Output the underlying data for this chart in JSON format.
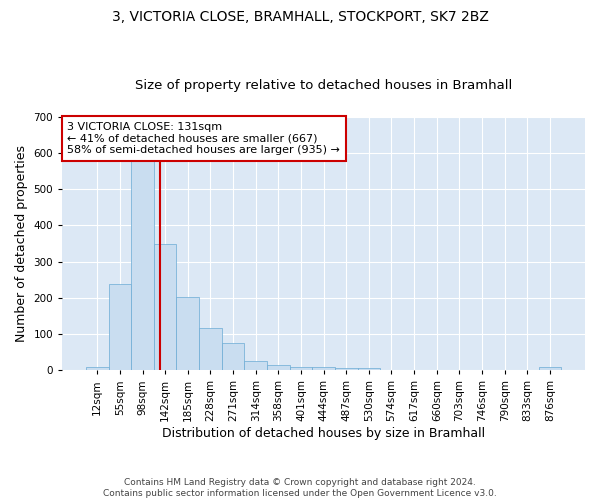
{
  "title_line1": "3, VICTORIA CLOSE, BRAMHALL, STOCKPORT, SK7 2BZ",
  "title_line2": "Size of property relative to detached houses in Bramhall",
  "xlabel": "Distribution of detached houses by size in Bramhall",
  "ylabel": "Number of detached properties",
  "footnote": "Contains HM Land Registry data © Crown copyright and database right 2024.\nContains public sector information licensed under the Open Government Licence v3.0.",
  "bar_labels": [
    "12sqm",
    "55sqm",
    "98sqm",
    "142sqm",
    "185sqm",
    "228sqm",
    "271sqm",
    "314sqm",
    "358sqm",
    "401sqm",
    "444sqm",
    "487sqm",
    "530sqm",
    "574sqm",
    "617sqm",
    "660sqm",
    "703sqm",
    "746sqm",
    "790sqm",
    "833sqm",
    "876sqm"
  ],
  "bar_values": [
    8,
    237,
    590,
    350,
    203,
    117,
    74,
    25,
    15,
    10,
    10,
    6,
    5,
    0,
    0,
    0,
    0,
    0,
    0,
    0,
    8
  ],
  "bar_color": "#c9ddf0",
  "bar_edge_color": "#6aaad4",
  "background_color": "#dce8f5",
  "grid_color": "#ffffff",
  "ylim": [
    0,
    700
  ],
  "yticks": [
    0,
    100,
    200,
    300,
    400,
    500,
    600,
    700
  ],
  "annotation_text": "3 VICTORIA CLOSE: 131sqm\n← 41% of detached houses are smaller (667)\n58% of semi-detached houses are larger (935) →",
  "vline_x": 2.75,
  "annotation_box_color": "#ffffff",
  "annotation_box_edge": "#cc0000",
  "vline_color": "#cc0000",
  "title_fontsize": 10,
  "subtitle_fontsize": 9.5,
  "axis_fontsize": 9,
  "tick_fontsize": 7.5,
  "annotation_fontsize": 8
}
